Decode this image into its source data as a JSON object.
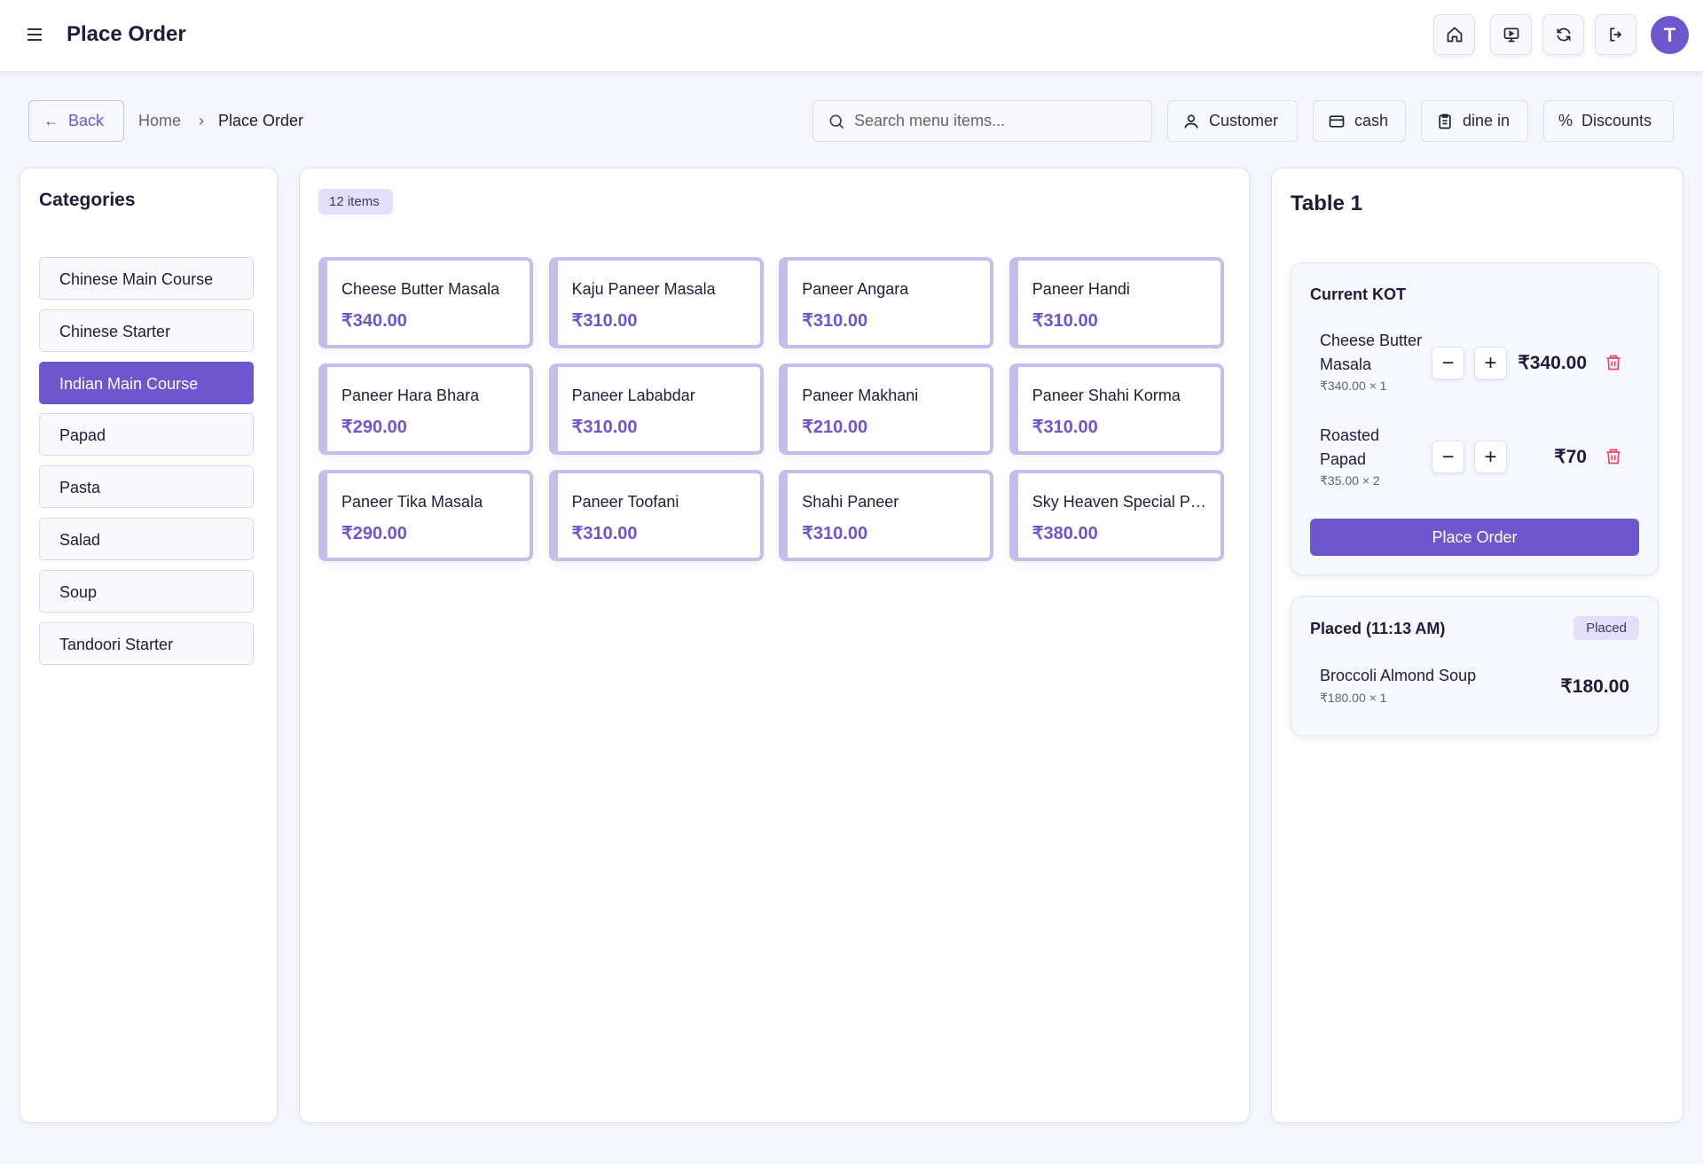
{
  "header": {
    "title": "Place Order",
    "avatar_letter": "T",
    "icons": [
      "home-icon",
      "monitor-icon",
      "refresh-icon",
      "logout-icon"
    ]
  },
  "toolbar": {
    "back": "Back",
    "breadcrumb": [
      "Home",
      "Place Order"
    ],
    "search_placeholder": "Search menu items...",
    "customer": "Customer",
    "payment": "cash",
    "order_type": "dine in",
    "discounts": "Discounts"
  },
  "categories": {
    "title": "Categories",
    "items": [
      "Chinese Main Course",
      "Chinese Starter",
      "Indian Main Course",
      "Papad",
      "Pasta",
      "Salad",
      "Soup",
      "Tandoori Starter"
    ],
    "active": "Indian Main Course"
  },
  "menu": {
    "count": "12 items",
    "items": [
      {
        "name": "Cheese Butter Masala",
        "price": "₹340.00"
      },
      {
        "name": "Kaju Paneer Masala",
        "price": "₹310.00"
      },
      {
        "name": "Paneer Angara",
        "price": "₹310.00"
      },
      {
        "name": "Paneer Handi",
        "price": "₹310.00"
      },
      {
        "name": "Paneer Hara Bhara",
        "price": "₹290.00"
      },
      {
        "name": "Paneer Lababdar",
        "price": "₹310.00"
      },
      {
        "name": "Paneer Makhani",
        "price": "₹210.00"
      },
      {
        "name": "Paneer Shahi Korma",
        "price": "₹310.00"
      },
      {
        "name": "Paneer Tika Masala",
        "price": "₹290.00"
      },
      {
        "name": "Paneer Toofani",
        "price": "₹310.00"
      },
      {
        "name": "Shahi Paneer",
        "price": "₹310.00"
      },
      {
        "name": "Sky Heaven Special Paneer",
        "price": "₹380.00"
      }
    ]
  },
  "order": {
    "table": "Table 1",
    "current_kot": {
      "title": "Current KOT",
      "items": [
        {
          "name_line1": "Cheese Butter",
          "name_line2": "Masala",
          "detail": "₹340.00 × 1",
          "total": "₹340.00"
        },
        {
          "name_line1": "Roasted",
          "name_line2": "Papad",
          "detail": "₹35.00 × 2",
          "total": "₹70"
        }
      ],
      "place_order": "Place Order"
    },
    "placed": {
      "title": "Placed (11:13 AM)",
      "badge": "Placed",
      "items": [
        {
          "name": "Broccoli Almond Soup",
          "detail": "₹180.00 × 1",
          "total": "₹180.00"
        }
      ]
    }
  },
  "colors": {
    "accent": "#6e56cf",
    "danger": "#ef4466",
    "card_border": "#c6bdeb"
  }
}
